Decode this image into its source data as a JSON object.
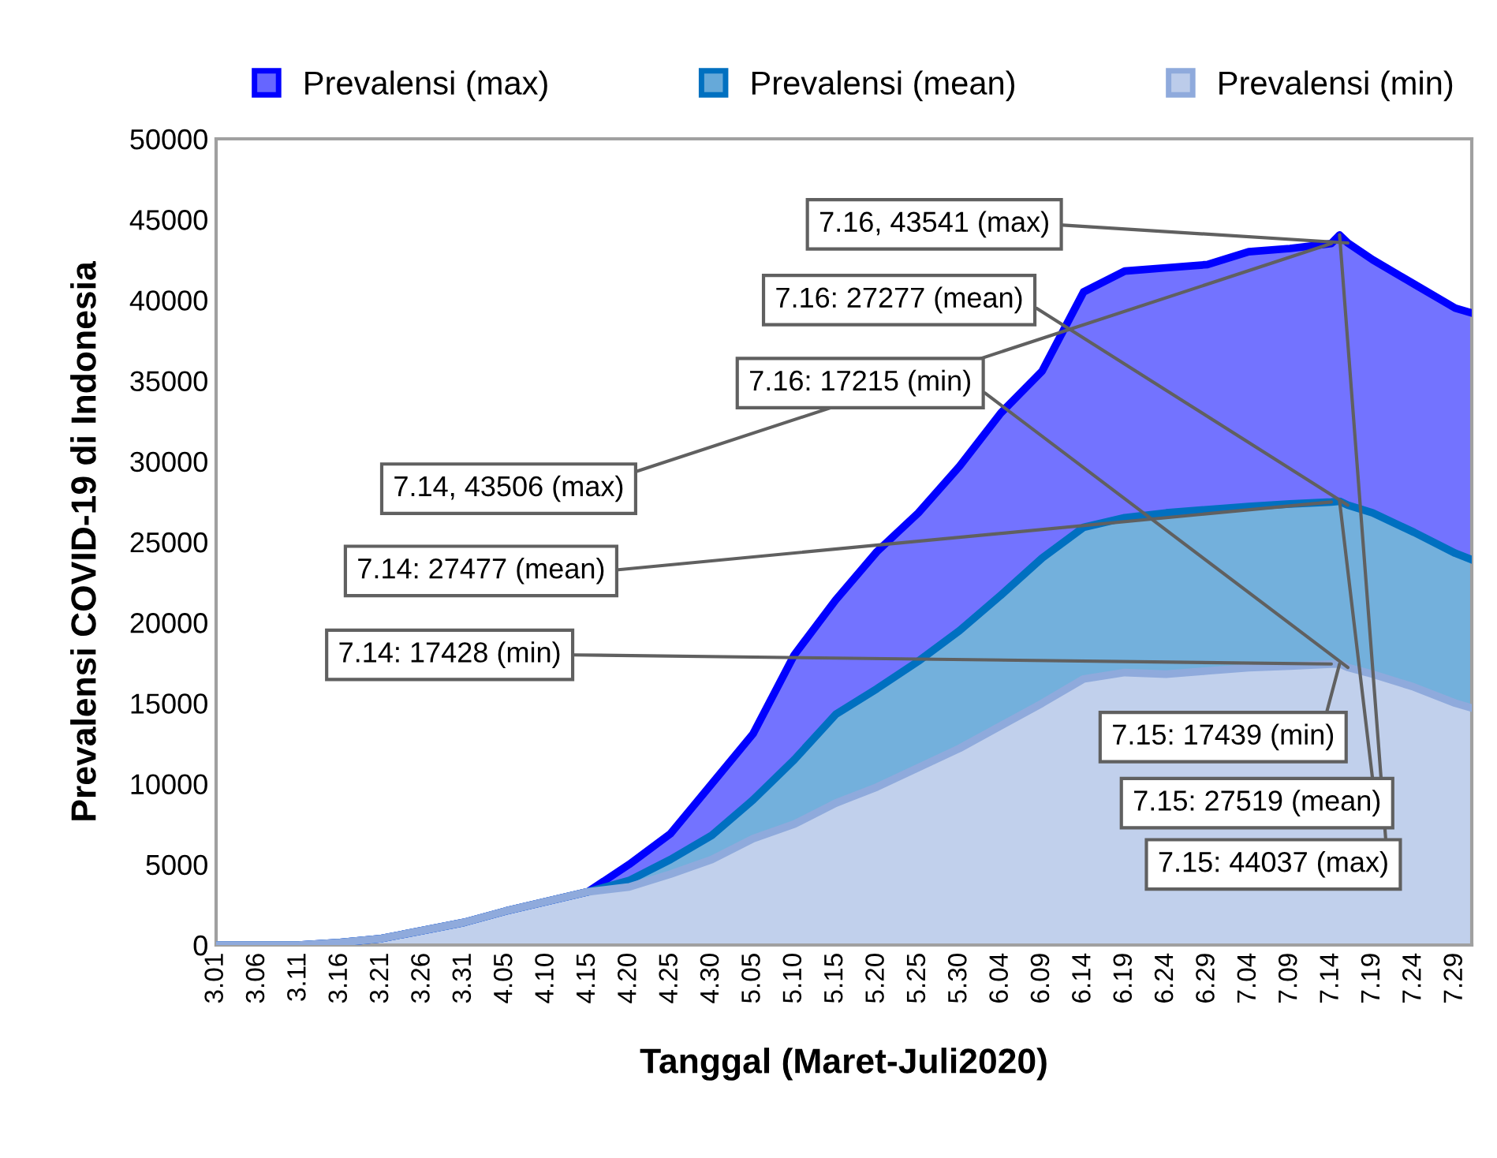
{
  "chart_data": {
    "type": "area",
    "xlabel": "Tanggal (Maret-Juli2020)",
    "ylabel": "Prevalensi COVID-19 di Indonesia",
    "x": [
      "2020-03-01",
      "2020-03-06",
      "2020-03-11",
      "2020-03-16",
      "2020-03-21",
      "2020-03-26",
      "2020-03-31",
      "2020-04-05",
      "2020-04-10",
      "2020-04-15",
      "2020-04-20",
      "2020-04-25",
      "2020-04-30",
      "2020-05-05",
      "2020-05-10",
      "2020-05-15",
      "2020-05-20",
      "2020-05-25",
      "2020-05-30",
      "2020-06-04",
      "2020-06-09",
      "2020-06-14",
      "2020-06-19",
      "2020-06-24",
      "2020-06-29",
      "2020-07-04",
      "2020-07-09",
      "2020-07-14",
      "2020-07-15",
      "2020-07-16",
      "2020-07-19",
      "2020-07-24",
      "2020-07-29",
      "2020-07-31"
    ],
    "series": [
      {
        "name": "Prevalensi (max)",
        "color": "#0000ff",
        "values": [
          0,
          0,
          0,
          150,
          400,
          900,
          1400,
          2100,
          2700,
          3300,
          5000,
          6900,
          10000,
          13100,
          18000,
          21400,
          24400,
          26800,
          29700,
          33000,
          35600,
          40500,
          41800,
          42000,
          42200,
          43000,
          43200,
          43506,
          44037,
          43541,
          42500,
          41000,
          39500,
          39200
        ]
      },
      {
        "name": "Prevalensi (mean)",
        "color": "#0070c0",
        "values": [
          0,
          0,
          0,
          150,
          400,
          900,
          1400,
          2100,
          2700,
          3300,
          4000,
          5300,
          6800,
          9000,
          11500,
          14300,
          15900,
          17600,
          19500,
          21700,
          24000,
          25900,
          26500,
          26800,
          27000,
          27200,
          27350,
          27477,
          27519,
          27277,
          26800,
          25600,
          24300,
          23900
        ]
      },
      {
        "name": "Prevalensi (min)",
        "color": "#8faadc",
        "values": [
          0,
          0,
          0,
          150,
          400,
          900,
          1400,
          2100,
          2700,
          3300,
          3600,
          4400,
          5300,
          6600,
          7500,
          8800,
          9800,
          11000,
          12200,
          13600,
          15000,
          16500,
          16900,
          16800,
          17000,
          17200,
          17300,
          17428,
          17439,
          17215,
          16800,
          16000,
          15000,
          14700
        ]
      }
    ],
    "xlim": [
      "2020-03-01",
      "2020-07-31"
    ],
    "xticks": [
      {
        "value": "2020-03-01",
        "label": "3.01"
      },
      {
        "value": "2020-03-06",
        "label": "3.06"
      },
      {
        "value": "2020-03-11",
        "label": "3.11"
      },
      {
        "value": "2020-03-16",
        "label": "3.16"
      },
      {
        "value": "2020-03-21",
        "label": "3.21"
      },
      {
        "value": "2020-03-26",
        "label": "3.26"
      },
      {
        "value": "2020-03-31",
        "label": "3.31"
      },
      {
        "value": "2020-04-05",
        "label": "4.05"
      },
      {
        "value": "2020-04-10",
        "label": "4.10"
      },
      {
        "value": "2020-04-15",
        "label": "4.15"
      },
      {
        "value": "2020-04-20",
        "label": "4.20"
      },
      {
        "value": "2020-04-25",
        "label": "4.25"
      },
      {
        "value": "2020-04-30",
        "label": "4.30"
      },
      {
        "value": "2020-05-05",
        "label": "5.05"
      },
      {
        "value": "2020-05-10",
        "label": "5.10"
      },
      {
        "value": "2020-05-15",
        "label": "5.15"
      },
      {
        "value": "2020-05-20",
        "label": "5.20"
      },
      {
        "value": "2020-05-25",
        "label": "5.25"
      },
      {
        "value": "2020-05-30",
        "label": "5.30"
      },
      {
        "value": "2020-06-04",
        "label": "6.04"
      },
      {
        "value": "2020-06-09",
        "label": "6.09"
      },
      {
        "value": "2020-06-14",
        "label": "6.14"
      },
      {
        "value": "2020-06-19",
        "label": "6.19"
      },
      {
        "value": "2020-06-24",
        "label": "6.24"
      },
      {
        "value": "2020-06-29",
        "label": "6.29"
      },
      {
        "value": "2020-07-04",
        "label": "7.04"
      },
      {
        "value": "2020-07-09",
        "label": "7.09"
      },
      {
        "value": "2020-07-14",
        "label": "7.14"
      },
      {
        "value": "2020-07-19",
        "label": "7.19"
      },
      {
        "value": "2020-07-24",
        "label": "7.24"
      },
      {
        "value": "2020-07-29",
        "label": "7.29"
      }
    ],
    "ylim": [
      0,
      50000
    ],
    "yticks": [
      0,
      5000,
      10000,
      15000,
      20000,
      25000,
      30000,
      35000,
      40000,
      45000,
      50000
    ],
    "grid": false,
    "legend": "top",
    "annotations": [
      {
        "text": "7.16, 43541 (max)",
        "x": "2020-07-16",
        "y": 43541
      },
      {
        "text": "7.16: 27277 (mean)",
        "x": "2020-07-16",
        "y": 27277
      },
      {
        "text": "7.16: 17215 (min)",
        "x": "2020-07-16",
        "y": 17215
      },
      {
        "text": "7.14, 43506 (max)",
        "x": "2020-07-14",
        "y": 43506
      },
      {
        "text": "7.14: 27477 (mean)",
        "x": "2020-07-14",
        "y": 27477
      },
      {
        "text": "7.14: 17428 (min)",
        "x": "2020-07-14",
        "y": 17428
      },
      {
        "text": "7.15: 17439 (min)",
        "x": "2020-07-15",
        "y": 17439
      },
      {
        "text": "7.15: 27519 (mean)",
        "x": "2020-07-15",
        "y": 27519
      },
      {
        "text": "7.15: 44037 (max)",
        "x": "2020-07-15",
        "y": 44037
      }
    ]
  }
}
